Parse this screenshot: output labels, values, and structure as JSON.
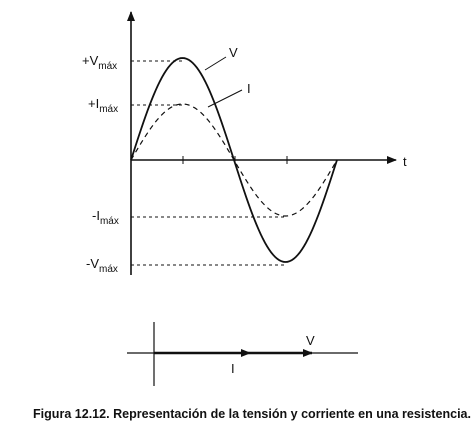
{
  "axes": {
    "y_labels": [
      {
        "main": "+V",
        "sub": "máx"
      },
      {
        "main": "+I",
        "sub": "máx"
      },
      {
        "main": "-I",
        "sub": "máx"
      },
      {
        "main": "-V",
        "sub": "máx"
      }
    ],
    "x_label": "t"
  },
  "curves": {
    "voltage": "V",
    "current": "I"
  },
  "phasor": {
    "voltage": "V",
    "current": "I"
  },
  "caption": "Figura 12.12. Representación de la tensión y corriente en una resistencia."
}
